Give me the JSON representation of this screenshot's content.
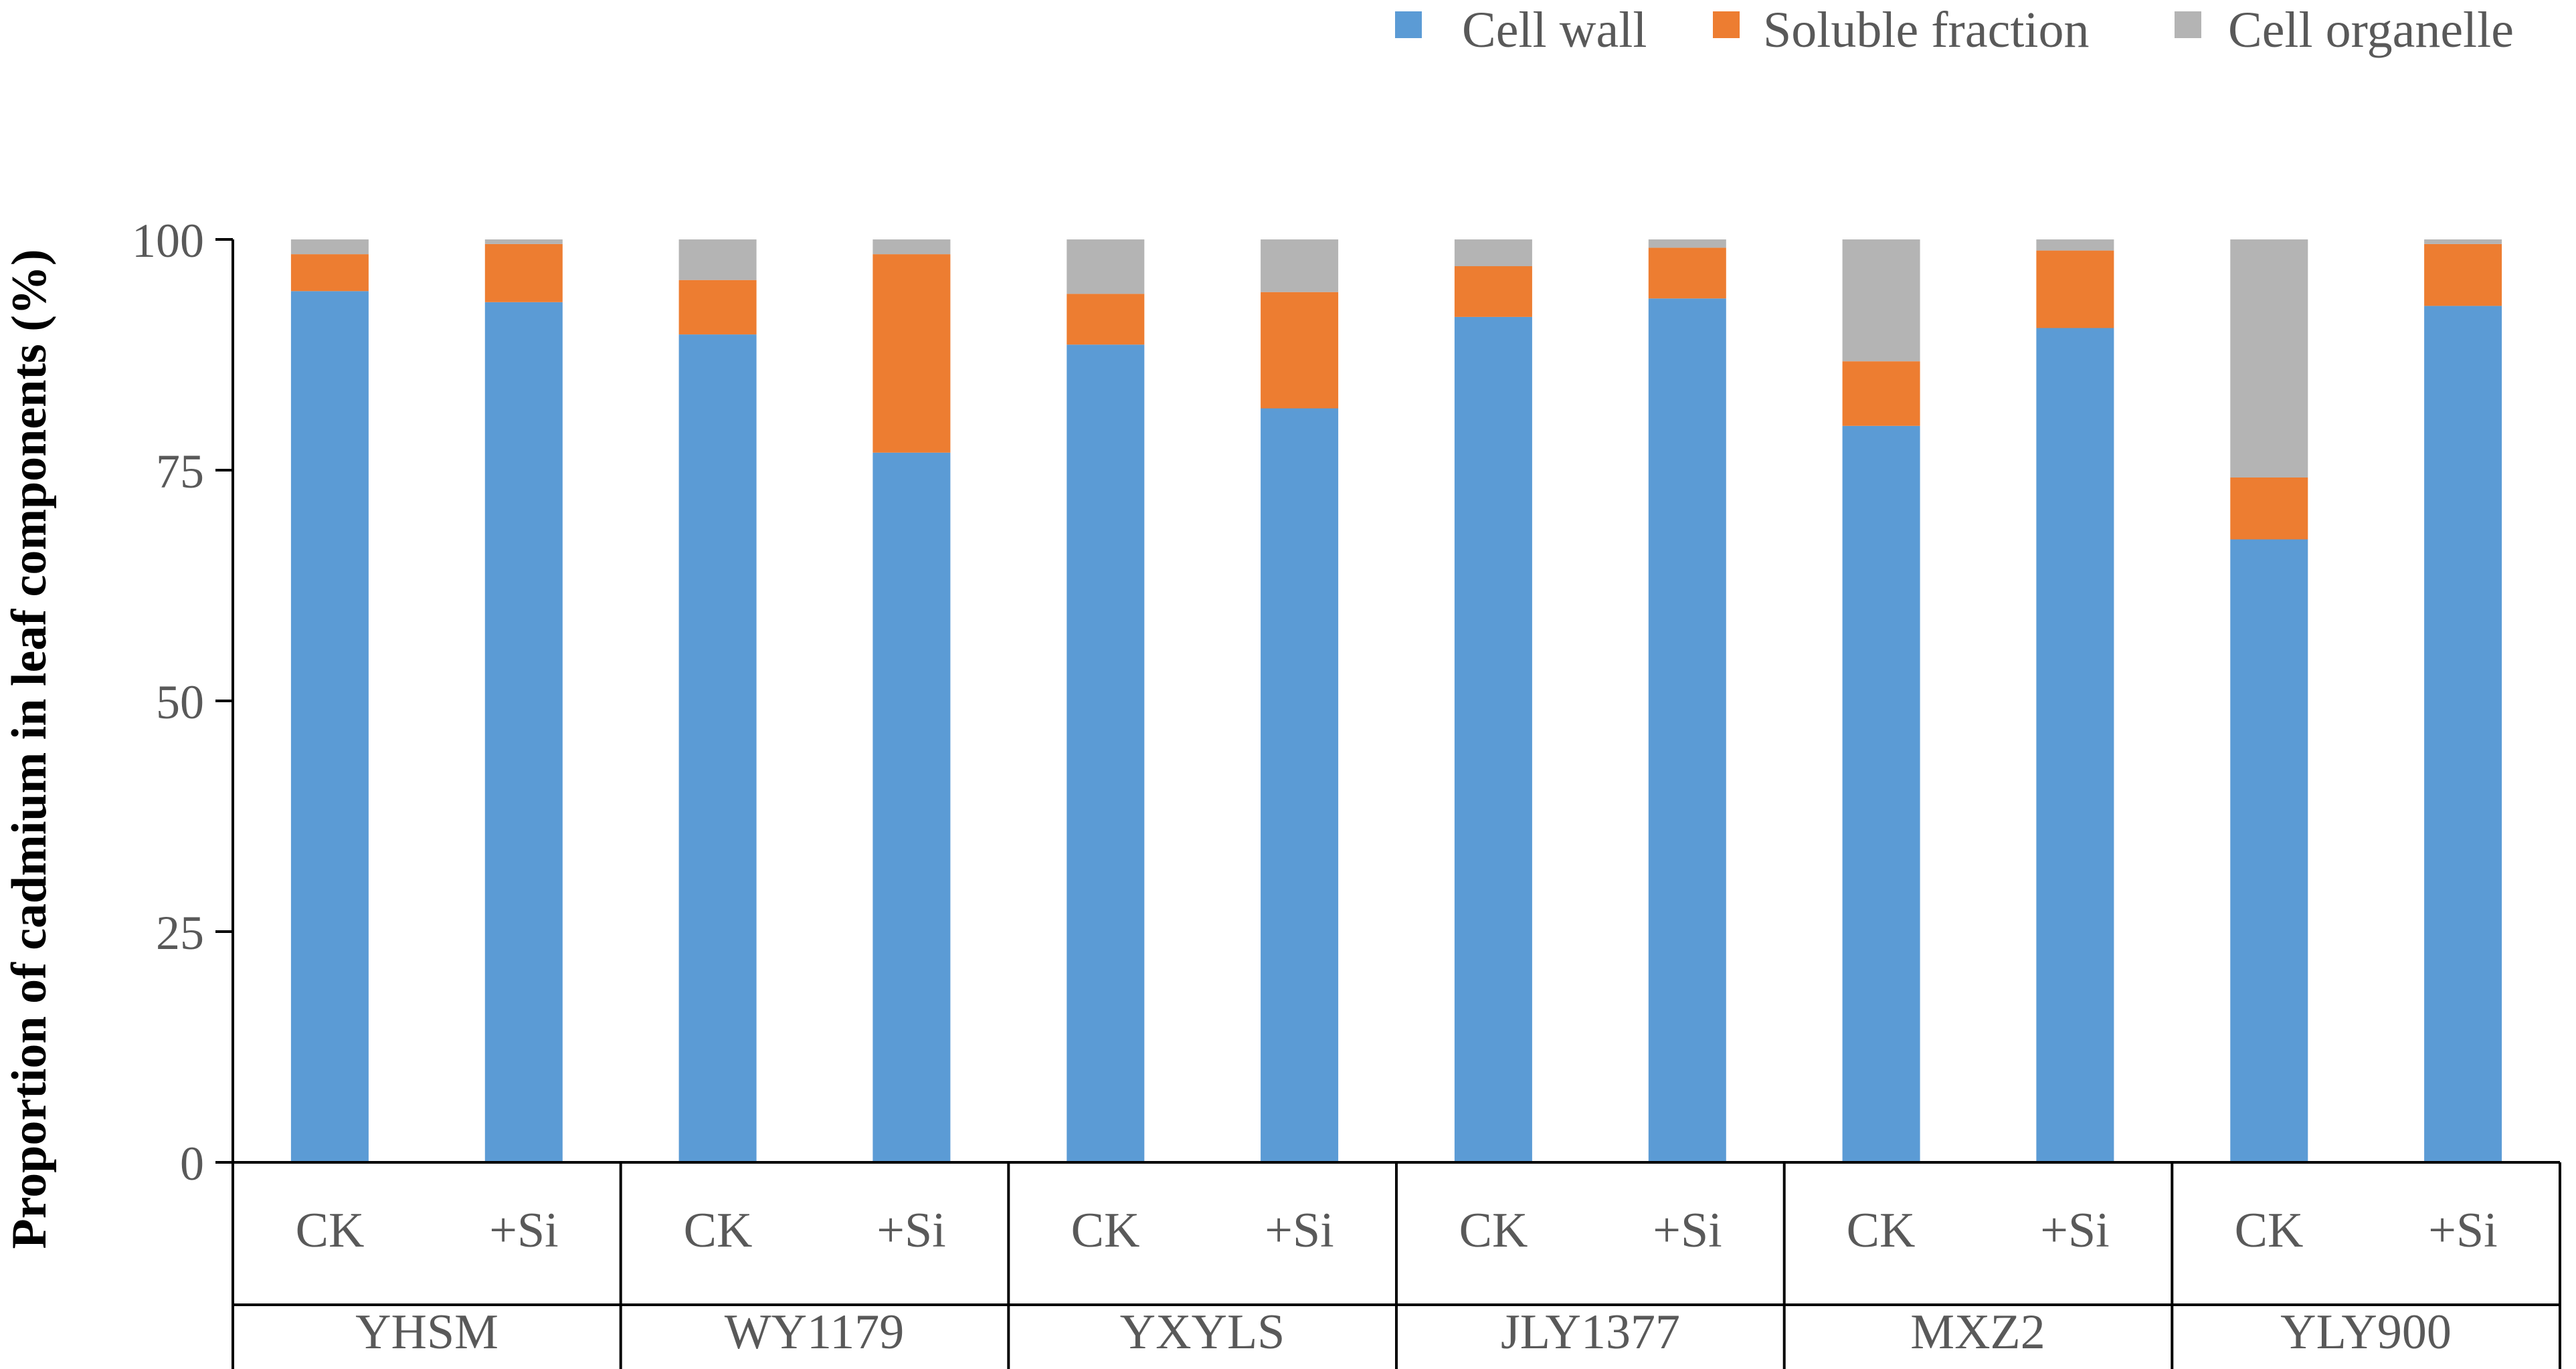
{
  "chart_data": {
    "type": "bar",
    "stacked": true,
    "title": "",
    "xlabel": "",
    "ylabel": "Proportion  of cadmium  in leaf components  (%)",
    "ylim": [
      0,
      100
    ],
    "yticks": [
      "0",
      "25",
      "50",
      "75",
      "100"
    ],
    "grid": false,
    "legend_position": "top-right",
    "groups": [
      "YHSM",
      "WY1179",
      "YXYLS",
      "JLY1377",
      "MXZ2",
      "YLY900"
    ],
    "categories": [
      "CK",
      "+Si",
      "CK",
      "+Si",
      "CK",
      "+Si",
      "CK",
      "+Si",
      "CK",
      "+Si",
      "CK",
      "+Si"
    ],
    "series": [
      {
        "name": "Cell wall",
        "color": "#5B9BD5",
        "values": [
          94.4,
          93.2,
          89.7,
          76.9,
          88.6,
          81.7,
          91.6,
          93.6,
          79.8,
          90.4,
          67.5,
          92.8
        ]
      },
      {
        "name": "Soluble fraction",
        "color": "#ED7D31",
        "values": [
          4.0,
          6.3,
          5.9,
          21.5,
          5.5,
          12.6,
          5.5,
          5.5,
          7.0,
          8.4,
          6.7,
          6.7
        ]
      },
      {
        "name": "Cell organelle",
        "color": "#B4B4B4",
        "values": [
          1.6,
          0.5,
          4.4,
          1.6,
          5.9,
          5.7,
          2.9,
          0.9,
          13.2,
          1.2,
          25.8,
          0.5
        ]
      }
    ]
  }
}
